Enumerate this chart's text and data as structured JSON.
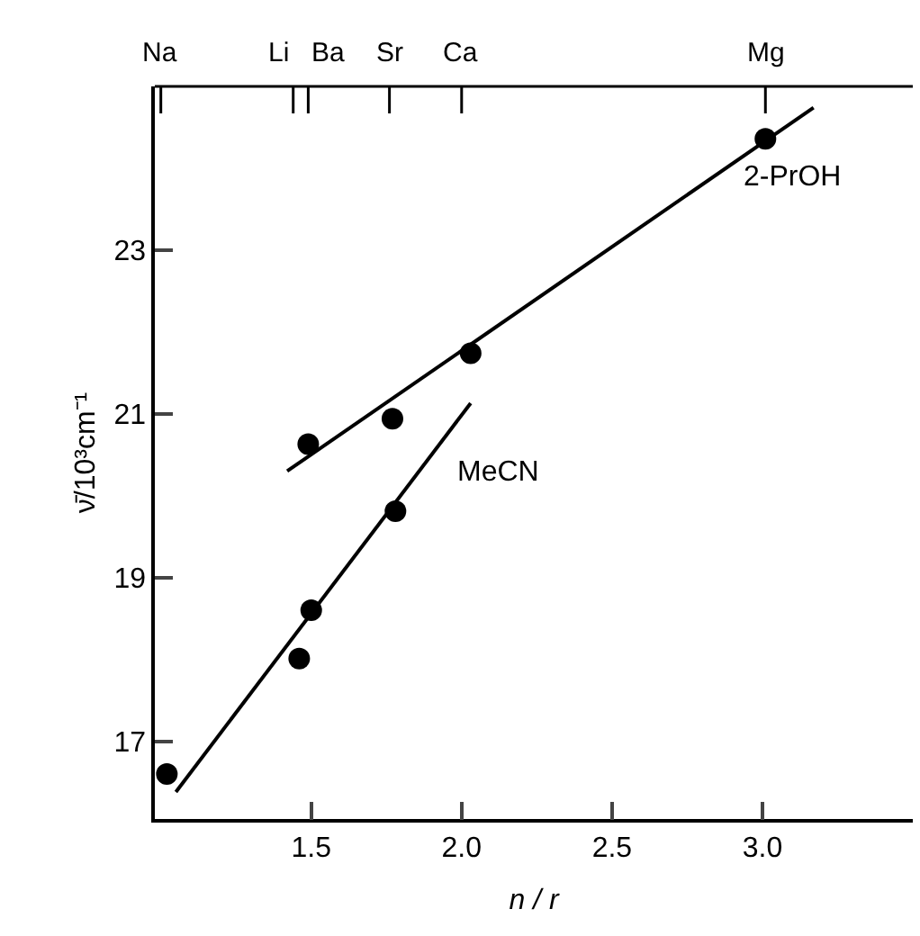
{
  "chart_data": {
    "type": "scatter",
    "xlabel": "n / r",
    "ylabel": "ν̄/10³cm⁻¹",
    "xlim": [
      0.98,
      3.5
    ],
    "ylim": [
      16.05,
      25
    ],
    "xticks": [
      {
        "value": 1.5,
        "label": "1.5"
      },
      {
        "value": 2.0,
        "label": "2.0"
      },
      {
        "value": 2.5,
        "label": "2.5"
      },
      {
        "value": 3.0,
        "label": "3.0"
      }
    ],
    "yticks": [
      17,
      19,
      21,
      23
    ],
    "ref_lines": [
      {
        "axis": "x",
        "value": 1.0,
        "label": "Na"
      },
      {
        "axis": "x",
        "value": 1.44,
        "label": "Li"
      },
      {
        "axis": "x",
        "value": 1.49,
        "label": "Ba"
      },
      {
        "axis": "x",
        "value": 1.76,
        "label": "Sr"
      },
      {
        "axis": "x",
        "value": 2.0,
        "label": "Ca"
      },
      {
        "axis": "x",
        "value": 3.01,
        "label": "Mg"
      }
    ],
    "grid": false,
    "legend": false,
    "marker": "circle",
    "series": [
      {
        "color": "#000000",
        "x": [
          1.02,
          1.46,
          1.5,
          1.78
        ],
        "values": [
          16.6,
          18.01,
          18.6,
          19.81
        ]
      },
      {
        "type": "line",
        "name": "MeCN",
        "color": "#000000",
        "marker": "none",
        "line_style": "solid",
        "x": [
          1.05,
          2.03
        ],
        "values": [
          16.38,
          21.13
        ]
      },
      {
        "color": "#000000",
        "x": [
          1.49,
          1.77,
          2.03,
          3.01
        ],
        "values": [
          20.63,
          20.94,
          21.74,
          24.36
        ]
      },
      {
        "type": "line",
        "name": "2-PrOH",
        "color": "#000000",
        "marker": "none",
        "line_style": "solid",
        "x": [
          1.42,
          3.17
        ],
        "values": [
          20.3,
          24.74
        ]
      }
    ]
  }
}
